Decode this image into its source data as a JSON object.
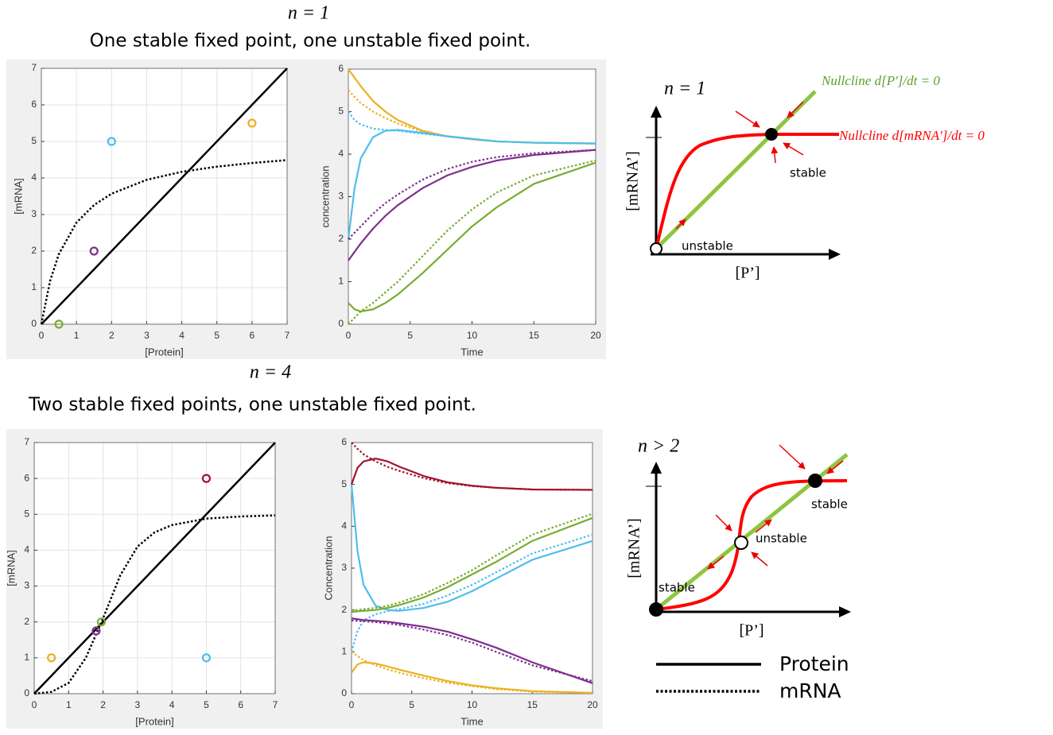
{
  "sections": [
    {
      "label": "n = 1",
      "caption": "One stable fixed point, one unstable fixed point."
    },
    {
      "label": "n = 4",
      "caption": "Two stable fixed points, one unstable fixed point."
    }
  ],
  "chart_data": [
    {
      "type": "line",
      "xlabel": "[Protein]",
      "ylabel": "[mRNA]",
      "xlim": [
        0,
        7
      ],
      "ylim": [
        0,
        7
      ],
      "xticks": [
        0,
        1,
        2,
        3,
        4,
        5,
        6,
        7
      ],
      "yticks": [
        0,
        1,
        2,
        3,
        4,
        5,
        6,
        7
      ],
      "grid": true,
      "series": [
        {
          "color": "#000000",
          "dash": "solid",
          "x": [
            0,
            7
          ],
          "values": [
            0,
            7
          ]
        },
        {
          "color": "#000000",
          "dash": "dotted",
          "x": [
            0,
            0.25,
            0.5,
            1,
            1.5,
            2,
            3,
            4,
            5,
            6,
            7
          ],
          "values": [
            0,
            1.19,
            1.92,
            2.78,
            3.26,
            3.57,
            3.95,
            4.17,
            4.31,
            4.41,
            4.49
          ]
        },
        {
          "color": "#77AC30",
          "mode": "markers",
          "x": [
            0.5
          ],
          "values": [
            0
          ]
        },
        {
          "color": "#7E2F8E",
          "mode": "markers",
          "x": [
            1.5
          ],
          "values": [
            2
          ]
        },
        {
          "color": "#4DBEEE",
          "mode": "markers",
          "x": [
            2
          ],
          "values": [
            5
          ]
        },
        {
          "color": "#EDB120",
          "mode": "markers",
          "x": [
            6
          ],
          "values": [
            5.5
          ]
        }
      ]
    },
    {
      "type": "line",
      "xlabel": "Time",
      "ylabel": "concentration",
      "xlim": [
        0,
        20
      ],
      "ylim": [
        0,
        6
      ],
      "xticks": [
        0,
        5,
        10,
        15,
        20
      ],
      "yticks": [
        0,
        1,
        2,
        3,
        4,
        5,
        6
      ],
      "grid": false,
      "x": [
        0,
        0.5,
        1,
        2,
        3,
        4,
        6,
        8,
        10,
        12,
        15,
        20
      ],
      "series": [
        {
          "color": "#EDB120",
          "dash": "solid",
          "values": [
            6,
            5.8,
            5.6,
            5.25,
            5.0,
            4.8,
            4.55,
            4.42,
            4.35,
            4.3,
            4.27,
            4.25
          ]
        },
        {
          "color": "#EDB120",
          "dash": "dotted",
          "values": [
            5.5,
            5.35,
            5.2,
            5.0,
            4.85,
            4.72,
            4.53,
            4.42,
            4.35,
            4.3,
            4.27,
            4.25
          ]
        },
        {
          "color": "#4DBEEE",
          "dash": "solid",
          "values": [
            2,
            3.2,
            3.9,
            4.4,
            4.55,
            4.57,
            4.5,
            4.42,
            4.36,
            4.3,
            4.27,
            4.25
          ]
        },
        {
          "color": "#4DBEEE",
          "dash": "dotted",
          "values": [
            5,
            4.8,
            4.7,
            4.6,
            4.57,
            4.55,
            4.48,
            4.42,
            4.36,
            4.3,
            4.27,
            4.25
          ]
        },
        {
          "color": "#7E2F8E",
          "dash": "solid",
          "values": [
            1.5,
            1.7,
            1.9,
            2.25,
            2.55,
            2.8,
            3.2,
            3.5,
            3.7,
            3.85,
            3.98,
            4.1
          ]
        },
        {
          "color": "#7E2F8E",
          "dash": "dotted",
          "values": [
            2,
            2.15,
            2.3,
            2.6,
            2.85,
            3.05,
            3.4,
            3.65,
            3.82,
            3.93,
            4.02,
            4.1
          ]
        },
        {
          "color": "#77AC30",
          "dash": "solid",
          "values": [
            0.5,
            0.35,
            0.3,
            0.35,
            0.5,
            0.7,
            1.2,
            1.75,
            2.3,
            2.75,
            3.3,
            3.8
          ]
        },
        {
          "color": "#77AC30",
          "dash": "dotted",
          "values": [
            0,
            0.15,
            0.3,
            0.5,
            0.75,
            1.0,
            1.6,
            2.2,
            2.7,
            3.1,
            3.5,
            3.85
          ]
        }
      ]
    },
    {
      "type": "line",
      "xlabel": "[Protein]",
      "ylabel": "[mRNA]",
      "xlim": [
        0,
        7
      ],
      "ylim": [
        0,
        7
      ],
      "xticks": [
        0,
        1,
        2,
        3,
        4,
        5,
        6,
        7
      ],
      "yticks": [
        0,
        1,
        2,
        3,
        4,
        5,
        6,
        7
      ],
      "grid": true,
      "series": [
        {
          "color": "#000000",
          "dash": "solid",
          "x": [
            0,
            7
          ],
          "values": [
            0,
            7
          ]
        },
        {
          "color": "#000000",
          "dash": "dotted",
          "x": [
            0,
            0.5,
            1,
            1.5,
            2,
            2.5,
            3,
            3.5,
            4,
            5,
            6,
            7
          ],
          "values": [
            0,
            0.05,
            0.3,
            1.0,
            2.1,
            3.3,
            4.1,
            4.5,
            4.7,
            4.88,
            4.94,
            4.97
          ]
        },
        {
          "color": "#EDB120",
          "mode": "markers",
          "x": [
            0.5
          ],
          "values": [
            1
          ]
        },
        {
          "color": "#7E2F8E",
          "mode": "markers",
          "x": [
            1.8
          ],
          "values": [
            1.75
          ]
        },
        {
          "color": "#77AC30",
          "mode": "markers",
          "x": [
            1.95
          ],
          "values": [
            2
          ]
        },
        {
          "color": "#4DBEEE",
          "mode": "markers",
          "x": [
            5
          ],
          "values": [
            1
          ]
        },
        {
          "color": "#A2142F",
          "mode": "markers",
          "x": [
            5
          ],
          "values": [
            6
          ]
        }
      ]
    },
    {
      "type": "line",
      "xlabel": "Time",
      "ylabel": "Concentration",
      "xlim": [
        0,
        20
      ],
      "ylim": [
        0,
        6
      ],
      "xticks": [
        0,
        5,
        10,
        15,
        20
      ],
      "yticks": [
        0,
        1,
        2,
        3,
        4,
        5,
        6
      ],
      "grid": false,
      "x": [
        0,
        0.5,
        1,
        2,
        3,
        4,
        6,
        8,
        10,
        12,
        15,
        20
      ],
      "series": [
        {
          "color": "#A2142F",
          "dash": "solid",
          "values": [
            5,
            5.4,
            5.55,
            5.62,
            5.55,
            5.42,
            5.2,
            5.05,
            4.97,
            4.92,
            4.88,
            4.87
          ]
        },
        {
          "color": "#A2142F",
          "dash": "dotted",
          "values": [
            6,
            5.85,
            5.72,
            5.55,
            5.42,
            5.32,
            5.15,
            5.03,
            4.96,
            4.92,
            4.88,
            4.87
          ]
        },
        {
          "color": "#4DBEEE",
          "dash": "solid",
          "values": [
            5,
            3.4,
            2.6,
            2.1,
            2.0,
            1.98,
            2.05,
            2.2,
            2.45,
            2.75,
            3.2,
            3.65
          ]
        },
        {
          "color": "#4DBEEE",
          "dash": "dotted",
          "values": [
            1,
            1.5,
            1.75,
            1.9,
            1.97,
            2.02,
            2.15,
            2.35,
            2.6,
            2.9,
            3.35,
            3.8
          ]
        },
        {
          "color": "#77AC30",
          "dash": "solid",
          "values": [
            1.95,
            1.97,
            1.98,
            2.0,
            2.05,
            2.12,
            2.3,
            2.55,
            2.85,
            3.15,
            3.65,
            4.2
          ]
        },
        {
          "color": "#77AC30",
          "dash": "dotted",
          "values": [
            2,
            2.0,
            2.02,
            2.05,
            2.1,
            2.18,
            2.38,
            2.65,
            2.95,
            3.3,
            3.8,
            4.3
          ]
        },
        {
          "color": "#7E2F8E",
          "dash": "solid",
          "values": [
            1.8,
            1.78,
            1.76,
            1.74,
            1.72,
            1.68,
            1.6,
            1.48,
            1.3,
            1.1,
            0.75,
            0.25
          ]
        },
        {
          "color": "#7E2F8E",
          "dash": "dotted",
          "values": [
            1.75,
            1.74,
            1.73,
            1.71,
            1.68,
            1.64,
            1.53,
            1.4,
            1.22,
            1.0,
            0.68,
            0.3
          ]
        },
        {
          "color": "#EDB120",
          "dash": "solid",
          "values": [
            0.5,
            0.7,
            0.75,
            0.72,
            0.65,
            0.57,
            0.43,
            0.3,
            0.2,
            0.13,
            0.06,
            0.02
          ]
        },
        {
          "color": "#EDB120",
          "dash": "dotted",
          "values": [
            1,
            0.9,
            0.8,
            0.68,
            0.58,
            0.5,
            0.37,
            0.26,
            0.18,
            0.11,
            0.05,
            0.02
          ]
        }
      ]
    }
  ],
  "diagrams": [
    {
      "label": "n = 1",
      "p_nullcline": "Nullcline d[P′]/dt = 0",
      "m_nullcline": "Nullcline d[mRNA′]/dt = 0",
      "stable": "stable",
      "unstable": "unstable",
      "ylabel": "[mRNA’]",
      "xlabel": "[P’]"
    },
    {
      "label": "n > 2",
      "stable_high": "stable",
      "unstable": "unstable",
      "stable_low": "stable",
      "ylabel": "[mRNA’]",
      "xlabel": "[P’]"
    }
  ],
  "legend": {
    "items": [
      {
        "label": "Protein",
        "dash": "solid"
      },
      {
        "label": "mRNA",
        "dash": "dotted"
      }
    ]
  }
}
